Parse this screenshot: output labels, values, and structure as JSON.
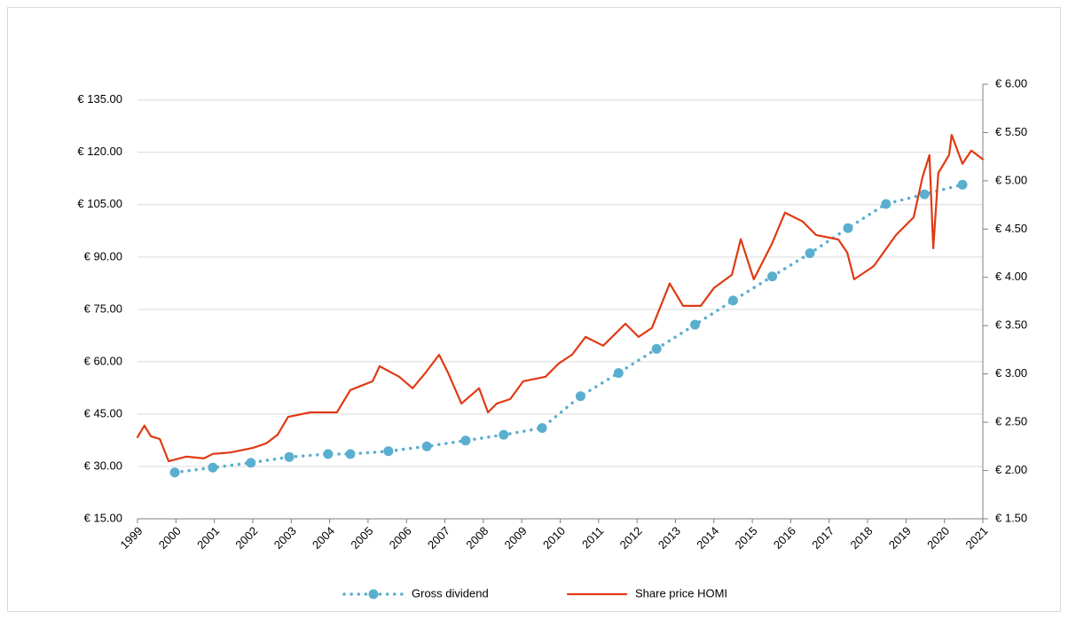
{
  "chart_data": {
    "type": "line",
    "xlim": [
      1999,
      2021
    ],
    "xticks": [
      1999,
      2000,
      2001,
      2002,
      2003,
      2004,
      2005,
      2006,
      2007,
      2008,
      2009,
      2010,
      2011,
      2012,
      2013,
      2014,
      2015,
      2016,
      2017,
      2018,
      2019,
      2020,
      2021
    ],
    "ylim": [
      15,
      139.5
    ],
    "yticks": [
      {
        "value": 15,
        "label": "€ 15.00"
      },
      {
        "value": 30,
        "label": "€ 30.00"
      },
      {
        "value": 45,
        "label": "€ 45.00"
      },
      {
        "value": 60,
        "label": "€ 60.00"
      },
      {
        "value": 75,
        "label": "€ 75.00"
      },
      {
        "value": 90,
        "label": "€ 90.00"
      },
      {
        "value": 105,
        "label": "€ 105.00"
      },
      {
        "value": 120,
        "label": "€ 120.00"
      },
      {
        "value": 135,
        "label": "€ 135.00"
      }
    ],
    "y2lim": [
      1.5,
      6.0
    ],
    "y2ticks": [
      {
        "value": 1.5,
        "label": "€ 1.50"
      },
      {
        "value": 2.0,
        "label": "€ 2.00"
      },
      {
        "value": 2.5,
        "label": "€ 2.50"
      },
      {
        "value": 3.0,
        "label": "€ 3.00"
      },
      {
        "value": 3.5,
        "label": "€ 3.50"
      },
      {
        "value": 4.0,
        "label": "€ 4.00"
      },
      {
        "value": 4.5,
        "label": "€ 4.50"
      },
      {
        "value": 5.0,
        "label": "€ 5.00"
      },
      {
        "value": 5.5,
        "label": "€ 5.50"
      },
      {
        "value": 6.0,
        "label": "€ 6.00"
      }
    ],
    "grid": true,
    "legend": "bottom",
    "series": [
      {
        "name": "Gross dividend",
        "color": "#5aafcf",
        "axis": "y2",
        "style": "dotted-markers",
        "x": [
          1999.97,
          2000.96,
          2001.95,
          2002.95,
          2003.96,
          2004.54,
          2005.53,
          2006.53,
          2007.54,
          2008.53,
          2009.53,
          2010.53,
          2011.52,
          2012.51,
          2013.51,
          2014.5,
          2015.52,
          2016.5,
          2017.49,
          2018.48,
          2019.48,
          2020.47
        ],
        "values": [
          1.98,
          2.03,
          2.08,
          2.14,
          2.17,
          2.17,
          2.2,
          2.25,
          2.31,
          2.37,
          2.44,
          2.77,
          3.01,
          3.26,
          3.51,
          3.76,
          4.01,
          4.25,
          4.51,
          4.76,
          4.86,
          4.96
        ]
      },
      {
        "name": "Share price HOMI",
        "color": "#e03a12",
        "axis": "y",
        "style": "solid",
        "x": [
          1999.0,
          1999.18,
          1999.35,
          1999.58,
          1999.81,
          2000.27,
          2000.73,
          2000.96,
          2001.42,
          2002.0,
          2002.35,
          2002.65,
          2002.92,
          2003.5,
          2004.19,
          2004.54,
          2005.12,
          2005.3,
          2005.81,
          2006.16,
          2006.5,
          2006.85,
          2007.08,
          2007.43,
          2007.89,
          2008.12,
          2008.35,
          2008.7,
          2009.04,
          2009.62,
          2009.96,
          2010.31,
          2010.66,
          2011.12,
          2011.7,
          2012.04,
          2012.39,
          2012.85,
          2013.2,
          2013.66,
          2014.0,
          2014.47,
          2014.7,
          2015.04,
          2015.51,
          2015.85,
          2016.31,
          2016.66,
          2017.24,
          2017.47,
          2017.65,
          2018.16,
          2018.74,
          2019.2,
          2019.43,
          2019.61,
          2019.71,
          2019.84,
          2020.12,
          2020.19,
          2020.47,
          2020.7,
          2021.0
        ],
        "values": [
          38.4,
          41.7,
          38.6,
          37.9,
          31.5,
          32.8,
          32.3,
          33.6,
          34,
          35.3,
          36.6,
          39.1,
          44.2,
          45.5,
          45.5,
          51.9,
          54.4,
          58.7,
          55.7,
          52.4,
          56.9,
          62,
          56.9,
          48,
          52.4,
          45.5,
          48,
          49.3,
          54.4,
          55.7,
          59.5,
          62,
          67.1,
          64.6,
          70.9,
          67.1,
          69.7,
          82.4,
          76,
          76,
          81.1,
          84.9,
          95.1,
          83.6,
          93.8,
          102.7,
          100.2,
          96.3,
          95,
          91.3,
          83.6,
          87.4,
          96.3,
          101.4,
          112.9,
          119.2,
          92.5,
          114.1,
          119.2,
          125,
          116.7,
          120.5,
          118
        ]
      }
    ]
  }
}
